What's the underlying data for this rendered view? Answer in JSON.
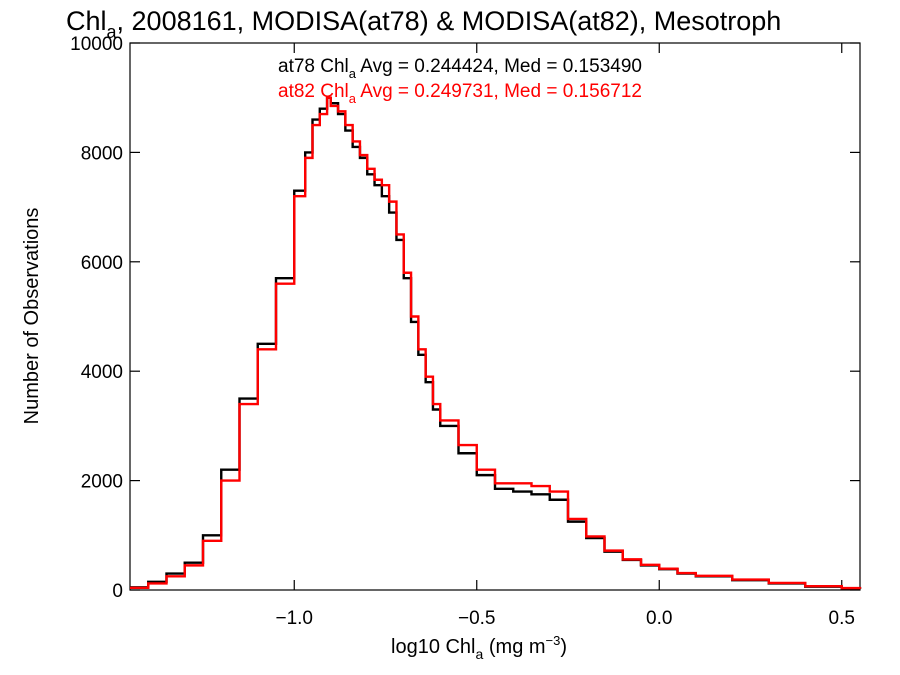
{
  "chart_data": {
    "type": "line",
    "title_main": "Chl",
    "title_sub": "a",
    "title_rest": ", 2008161, MODISA(at78) & MODISA(at82), Mesotroph",
    "xlabel_pre": "log10 Chl",
    "xlabel_sub": "a",
    "xlabel_post": " (mg m",
    "xlabel_sup": "−3",
    "xlabel_close": ")",
    "ylabel": "Number of Observations",
    "xlim": [
      -1.45,
      0.55
    ],
    "ylim": [
      0,
      10000
    ],
    "x_ticks": [
      -1.0,
      -0.5,
      0.0,
      0.5
    ],
    "x_tick_labels": [
      "−1.0",
      "−0.5",
      "0.0",
      "0.5"
    ],
    "y_ticks": [
      0,
      2000,
      4000,
      6000,
      8000,
      10000
    ],
    "y_tick_labels": [
      "0",
      "2000",
      "4000",
      "6000",
      "8000",
      "10000"
    ],
    "legend": [
      {
        "pre": "at78 Chl",
        "sub": "a",
        "post": " Avg = 0.244424, Med = 0.153490",
        "color": "#000000"
      },
      {
        "pre": "at82 Chl",
        "sub": "a",
        "post": " Avg = 0.249731, Med = 0.156712",
        "color": "#ff0000"
      }
    ],
    "series": [
      {
        "color": "#000000",
        "x": [
          -1.45,
          -1.4,
          -1.35,
          -1.3,
          -1.25,
          -1.2,
          -1.15,
          -1.1,
          -1.05,
          -1.0,
          -0.97,
          -0.95,
          -0.93,
          -0.91,
          -0.9,
          -0.88,
          -0.86,
          -0.84,
          -0.82,
          -0.8,
          -0.78,
          -0.76,
          -0.74,
          -0.72,
          -0.7,
          -0.68,
          -0.66,
          -0.64,
          -0.62,
          -0.6,
          -0.55,
          -0.5,
          -0.45,
          -0.4,
          -0.35,
          -0.3,
          -0.25,
          -0.2,
          -0.15,
          -0.1,
          -0.05,
          0.0,
          0.05,
          0.1,
          0.2,
          0.3,
          0.4,
          0.5,
          0.55
        ],
        "y": [
          50,
          150,
          300,
          500,
          1000,
          2200,
          3500,
          4500,
          5700,
          7300,
          8000,
          8600,
          8800,
          9000,
          8900,
          8700,
          8400,
          8100,
          7900,
          7600,
          7400,
          7200,
          6900,
          6400,
          5700,
          4900,
          4300,
          3800,
          3300,
          3000,
          2500,
          2100,
          1850,
          1800,
          1750,
          1650,
          1250,
          950,
          700,
          550,
          450,
          380,
          300,
          250,
          180,
          120,
          60,
          30,
          20
        ]
      },
      {
        "color": "#ff0000",
        "x": [
          -1.45,
          -1.4,
          -1.35,
          -1.3,
          -1.25,
          -1.2,
          -1.15,
          -1.1,
          -1.05,
          -1.0,
          -0.97,
          -0.95,
          -0.93,
          -0.91,
          -0.9,
          -0.88,
          -0.86,
          -0.84,
          -0.82,
          -0.8,
          -0.78,
          -0.76,
          -0.74,
          -0.72,
          -0.7,
          -0.68,
          -0.66,
          -0.64,
          -0.62,
          -0.6,
          -0.55,
          -0.5,
          -0.45,
          -0.4,
          -0.35,
          -0.3,
          -0.25,
          -0.2,
          -0.15,
          -0.1,
          -0.05,
          0.0,
          0.05,
          0.1,
          0.2,
          0.3,
          0.4,
          0.5,
          0.55
        ],
        "y": [
          40,
          120,
          250,
          450,
          900,
          2000,
          3400,
          4400,
          5600,
          7200,
          7900,
          8500,
          8700,
          9000,
          8850,
          8750,
          8500,
          8200,
          7950,
          7700,
          7500,
          7400,
          7100,
          6500,
          5800,
          5000,
          4400,
          3900,
          3400,
          3100,
          2650,
          2200,
          1950,
          1950,
          1900,
          1800,
          1300,
          980,
          720,
          560,
          460,
          390,
          310,
          260,
          190,
          130,
          70,
          35,
          20
        ]
      }
    ]
  }
}
